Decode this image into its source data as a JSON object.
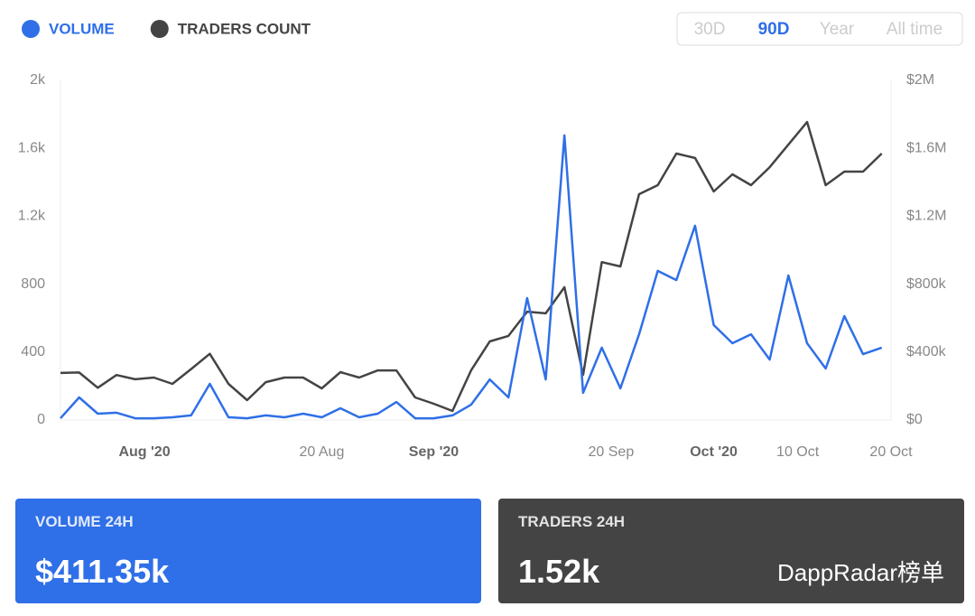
{
  "chart_data": {
    "type": "line",
    "x": [
      "2020-07-23",
      "2020-07-25",
      "2020-07-27",
      "2020-07-29",
      "2020-07-31",
      "2020-08-02",
      "2020-08-04",
      "2020-08-06",
      "2020-08-08",
      "2020-08-10",
      "2020-08-12",
      "2020-08-14",
      "2020-08-16",
      "2020-08-18",
      "2020-08-20",
      "2020-08-22",
      "2020-08-24",
      "2020-08-26",
      "2020-08-28",
      "2020-08-30",
      "2020-09-01",
      "2020-09-03",
      "2020-09-05",
      "2020-09-07",
      "2020-09-09",
      "2020-09-11",
      "2020-09-13",
      "2020-09-15",
      "2020-09-17",
      "2020-09-19",
      "2020-09-21",
      "2020-09-23",
      "2020-09-25",
      "2020-09-27",
      "2020-09-29",
      "2020-10-01",
      "2020-10-03",
      "2020-10-05",
      "2020-10-07",
      "2020-10-09",
      "2020-10-11",
      "2020-10-13",
      "2020-10-15",
      "2020-10-17",
      "2020-10-19"
    ],
    "series": [
      {
        "name": "VOLUME",
        "color": "#2f6fe8",
        "axis": "y2",
        "values": [
          10000,
          133000,
          37000,
          43000,
          10000,
          10000,
          16000,
          27000,
          213000,
          16000,
          10000,
          27000,
          16000,
          37000,
          16000,
          69000,
          16000,
          37000,
          106000,
          10000,
          10000,
          27000,
          90000,
          239000,
          133000,
          718000,
          239000,
          1676000,
          160000,
          426000,
          186000,
          505000,
          878000,
          824000,
          1144000,
          559000,
          452000,
          505000,
          356000,
          851000,
          452000,
          303000,
          612000,
          388000,
          426000
        ]
      },
      {
        "name": "TRADERS COUNT",
        "color": "#444444",
        "values": [
          277,
          280,
          190,
          265,
          240,
          250,
          213,
          300,
          390,
          213,
          117,
          223,
          250,
          250,
          186,
          282,
          250,
          292,
          292,
          133,
          96,
          53,
          292,
          463,
          495,
          638,
          628,
          782,
          266,
          930,
          904,
          1330,
          1383,
          1569,
          1543,
          1346,
          1447,
          1383,
          1489,
          1622,
          1755,
          1383,
          1463,
          1463,
          1569
        ]
      }
    ],
    "xlim": [
      "2020-07-23",
      "2020-10-20"
    ],
    "xticks": [
      {
        "value": "2020-08-01",
        "label": "Aug '20"
      },
      {
        "value": "2020-08-20",
        "label": "20 Aug"
      },
      {
        "value": "2020-09-01",
        "label": "Sep '20"
      },
      {
        "value": "2020-09-20",
        "label": "20 Sep"
      },
      {
        "value": "2020-10-01",
        "label": "Oct '20"
      },
      {
        "value": "2020-10-10",
        "label": "10 Oct"
      },
      {
        "value": "2020-10-20",
        "label": "20 Oct"
      }
    ],
    "ylim": [
      0,
      2000
    ],
    "yticks": [
      0,
      400,
      800,
      {
        "value": 1200,
        "label": "1.2k"
      },
      {
        "value": 1600,
        "label": "1.6k"
      },
      {
        "value": 2000,
        "label": "2k"
      }
    ],
    "y2lim": [
      0,
      2000000
    ],
    "y2ticks": [
      {
        "value": 0,
        "label": "$0"
      },
      {
        "value": 400000,
        "label": "$400k"
      },
      {
        "value": 800000,
        "label": "$800k"
      },
      {
        "value": 1200000,
        "label": "$1.2M"
      },
      {
        "value": 1600000,
        "label": "$1.6M"
      },
      {
        "value": 2000000,
        "label": "$2M"
      }
    ],
    "periods": [
      "30D",
      "90D",
      "Year",
      "All time"
    ],
    "active_period": "90D"
  },
  "cards": [
    {
      "title": "VOLUME 24H",
      "value": "$411.35k"
    },
    {
      "title": "TRADERS 24H",
      "value": "1.52k"
    }
  ],
  "watermark": "DappRadar榜单"
}
